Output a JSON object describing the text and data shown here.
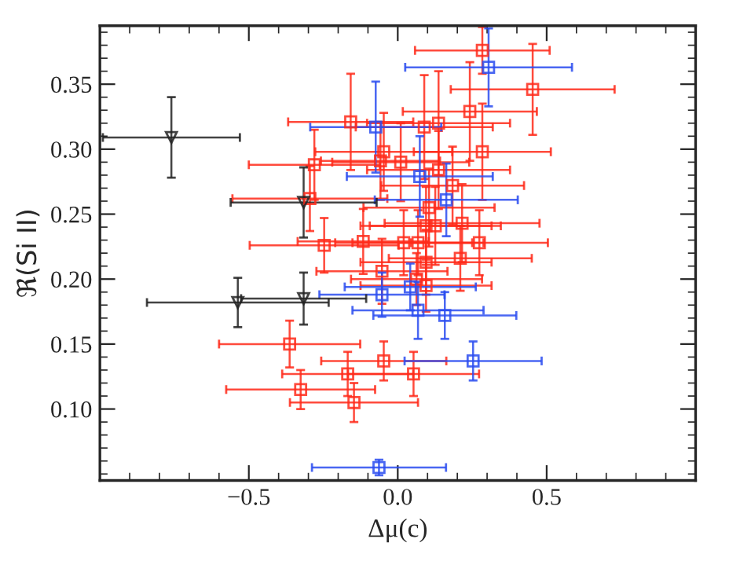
{
  "chart_data": {
    "type": "scatter",
    "xlabel": "Δμ(c)",
    "ylabel": "ℜ(Si II)",
    "xlim": [
      -1.0,
      1.0
    ],
    "ylim": [
      0.045,
      0.395
    ],
    "xticks": [
      {
        "value": -0.9,
        "label": null
      },
      {
        "value": -0.8,
        "label": null
      },
      {
        "value": -0.7,
        "label": null
      },
      {
        "value": -0.6,
        "label": null
      },
      {
        "value": -0.5,
        "label": "−0.5"
      },
      {
        "value": -0.4,
        "label": null
      },
      {
        "value": -0.3,
        "label": null
      },
      {
        "value": -0.2,
        "label": null
      },
      {
        "value": -0.1,
        "label": null
      },
      {
        "value": 0.0,
        "label": "0.0"
      },
      {
        "value": 0.1,
        "label": null
      },
      {
        "value": 0.2,
        "label": null
      },
      {
        "value": 0.3,
        "label": null
      },
      {
        "value": 0.4,
        "label": null
      },
      {
        "value": 0.5,
        "label": "0.5"
      },
      {
        "value": 0.6,
        "label": null
      },
      {
        "value": 0.7,
        "label": null
      },
      {
        "value": 0.8,
        "label": null
      },
      {
        "value": 0.9,
        "label": null
      }
    ],
    "yticks": [
      {
        "value": 0.05,
        "label": null
      },
      {
        "value": 0.06,
        "label": null
      },
      {
        "value": 0.07,
        "label": null
      },
      {
        "value": 0.08,
        "label": null
      },
      {
        "value": 0.09,
        "label": null
      },
      {
        "value": 0.1,
        "label": "0.10"
      },
      {
        "value": 0.11,
        "label": null
      },
      {
        "value": 0.12,
        "label": null
      },
      {
        "value": 0.13,
        "label": null
      },
      {
        "value": 0.14,
        "label": null
      },
      {
        "value": 0.15,
        "label": "0.15"
      },
      {
        "value": 0.16,
        "label": null
      },
      {
        "value": 0.17,
        "label": null
      },
      {
        "value": 0.18,
        "label": null
      },
      {
        "value": 0.19,
        "label": null
      },
      {
        "value": 0.2,
        "label": "0.20"
      },
      {
        "value": 0.21,
        "label": null
      },
      {
        "value": 0.22,
        "label": null
      },
      {
        "value": 0.23,
        "label": null
      },
      {
        "value": 0.24,
        "label": null
      },
      {
        "value": 0.25,
        "label": "0.25"
      },
      {
        "value": 0.26,
        "label": null
      },
      {
        "value": 0.27,
        "label": null
      },
      {
        "value": 0.28,
        "label": null
      },
      {
        "value": 0.29,
        "label": null
      },
      {
        "value": 0.3,
        "label": "0.30"
      },
      {
        "value": 0.31,
        "label": null
      },
      {
        "value": 0.32,
        "label": null
      },
      {
        "value": 0.33,
        "label": null
      },
      {
        "value": 0.34,
        "label": null
      },
      {
        "value": 0.35,
        "label": "0.35"
      },
      {
        "value": 0.36,
        "label": null
      },
      {
        "value": 0.37,
        "label": null
      },
      {
        "value": 0.38,
        "label": null
      },
      {
        "value": 0.39,
        "label": null
      }
    ],
    "series": [
      {
        "color": "#ff2a1a",
        "marker": "square",
        "x": [
          -0.158,
          -0.047,
          -0.058,
          0.01,
          -0.28,
          -0.295,
          -0.247,
          -0.116,
          0.02,
          -0.053,
          0.284,
          0.453,
          0.242,
          0.089,
          0.137,
          0.284,
          0.137,
          0.184,
          0.105,
          0.095,
          0.126,
          0.216,
          0.068,
          0.274,
          0.095,
          0.21,
          0.063,
          0.095,
          -0.363,
          -0.047,
          -0.168,
          0.053,
          -0.326,
          -0.147
        ],
        "values": [
          0.321,
          0.298,
          0.291,
          0.29,
          0.288,
          0.262,
          0.226,
          0.229,
          0.228,
          0.206,
          0.376,
          0.346,
          0.329,
          0.317,
          0.32,
          0.298,
          0.284,
          0.272,
          0.255,
          0.241,
          0.241,
          0.243,
          0.228,
          0.228,
          0.213,
          0.216,
          0.2,
          0.195,
          0.15,
          0.137,
          0.127,
          0.127,
          0.115,
          0.105
        ],
        "xerrors": [
          0.21,
          0.23,
          0.2,
          0.23,
          0.22,
          0.26,
          0.25,
          0.22,
          0.23,
          0.22,
          0.226,
          0.275,
          0.225,
          0.23,
          0.24,
          0.23,
          0.24,
          0.24,
          0.22,
          0.22,
          0.22,
          0.26,
          0.22,
          0.23,
          0.22,
          0.24,
          0.22,
          0.22,
          0.237,
          0.21,
          0.22,
          0.22,
          0.25,
          0.215
        ],
        "errors": [
          0.037,
          0.03,
          0.03,
          0.03,
          0.027,
          0.025,
          0.021,
          0.025,
          0.025,
          0.025,
          0.018,
          0.035,
          0.038,
          0.04,
          0.04,
          0.037,
          0.03,
          0.03,
          0.03,
          0.03,
          0.03,
          0.03,
          0.025,
          0.025,
          0.025,
          0.025,
          0.02,
          0.02,
          0.018,
          0.015,
          0.017,
          0.017,
          0.015,
          0.015
        ]
      },
      {
        "color": "#2a4cf0",
        "marker": "square",
        "x": [
          -0.063,
          0.305,
          -0.074,
          0.074,
          0.163,
          -0.053,
          0.042,
          0.068,
          0.158,
          0.253
        ],
        "values": [
          0.055,
          0.363,
          0.317,
          0.279,
          0.261,
          0.188,
          0.194,
          0.176,
          0.172,
          0.137
        ],
        "xerrors": [
          0.225,
          0.28,
          0.22,
          0.245,
          0.24,
          0.21,
          0.22,
          0.22,
          0.24,
          0.23
        ],
        "errors": [
          0.006,
          0.03,
          0.035,
          0.031,
          0.028,
          0.017,
          0.018,
          0.022,
          0.018,
          0.015
        ]
      },
      {
        "color": "#222222",
        "marker": "triangle",
        "x": [
          -0.76,
          -0.316,
          -0.537,
          -0.316
        ],
        "values": [
          0.309,
          0.259,
          0.182,
          0.185
        ],
        "xerrors": [
          0.23,
          0.245,
          0.305,
          0.21
        ],
        "errors": [
          0.031,
          0.027,
          0.019,
          0.02
        ]
      }
    ]
  }
}
